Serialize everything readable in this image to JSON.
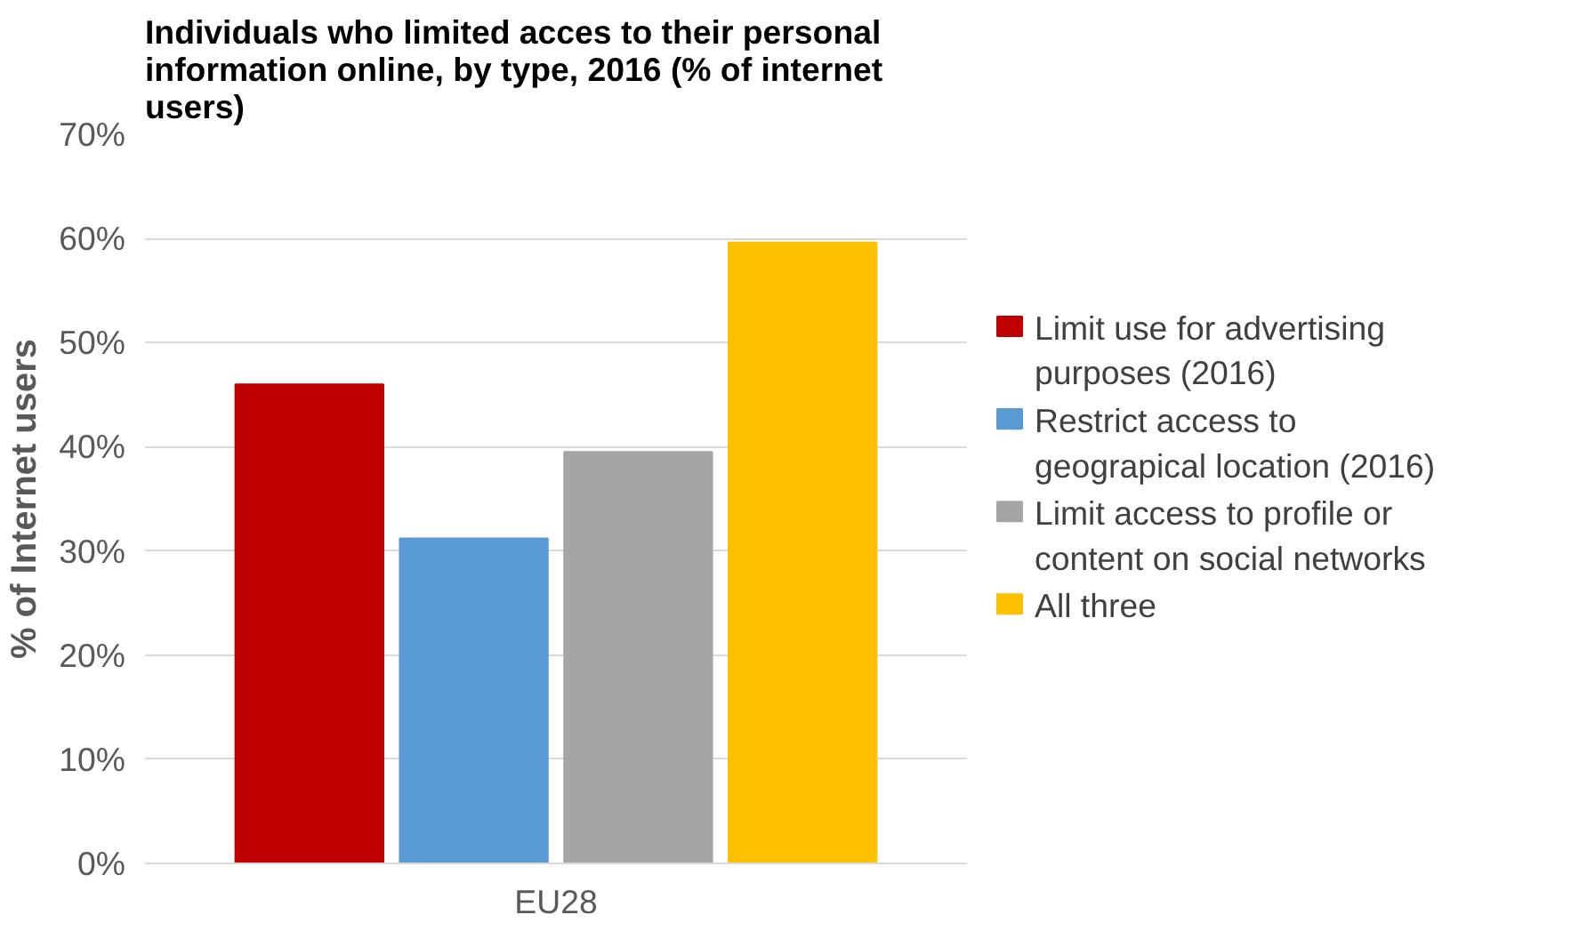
{
  "chart_data": {
    "type": "bar",
    "title": "Individuals who limited acces to their personal information online, by type, 2016 (% of internet users)",
    "ylabel": "% of Internet users",
    "categories": [
      "EU28"
    ],
    "series": [
      {
        "name": "Limit use for advertising purposes (2016)",
        "color": "#c00000",
        "values": [
          46.0
        ]
      },
      {
        "name": "Restrict access to geograpical location (2016)",
        "color": "#5b9bd5",
        "values": [
          31.2
        ]
      },
      {
        "name": "Limit access to profile or content on social networks",
        "color": "#a5a5a5",
        "values": [
          39.5
        ]
      },
      {
        "name": "All three",
        "color": "#ffc000",
        "values": [
          59.6
        ]
      }
    ],
    "ylim": [
      0,
      70
    ],
    "yticks": [
      {
        "value": 0,
        "label": "0%"
      },
      {
        "value": 10,
        "label": "10%"
      },
      {
        "value": 20,
        "label": "20%"
      },
      {
        "value": 30,
        "label": "30%"
      },
      {
        "value": 40,
        "label": "40%"
      },
      {
        "value": 50,
        "label": "50%"
      },
      {
        "value": 60,
        "label": "60%"
      },
      {
        "value": 70,
        "label": "70%"
      }
    ],
    "grid": "y",
    "legend": "right"
  }
}
